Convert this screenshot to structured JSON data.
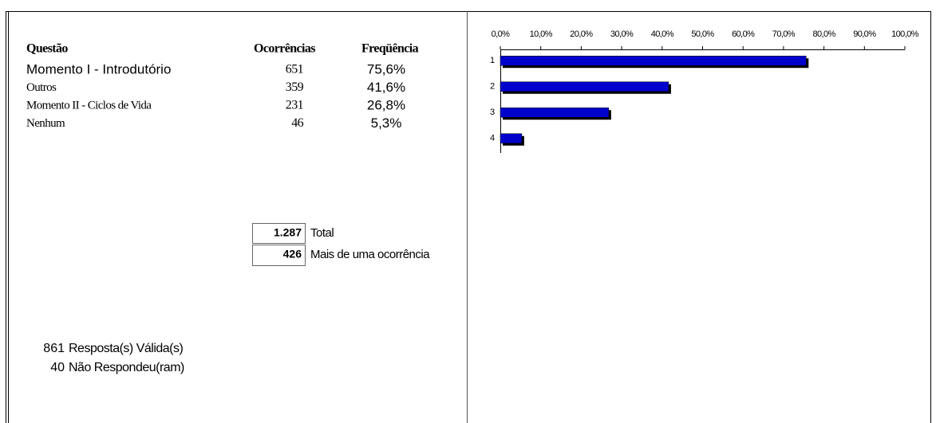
{
  "table": {
    "headers": [
      "Questão",
      "Ocorrências",
      "Freqüência"
    ],
    "rows": [
      [
        "Momento I - Introdutório",
        651,
        "75,6%"
      ],
      [
        "Outros",
        359,
        "41,6%"
      ],
      [
        "Momento II - Ciclos de Vida",
        231,
        "26,8%"
      ],
      [
        "Nenhum",
        46,
        "5,3%"
      ]
    ]
  },
  "totals": [
    {
      "value": "1.287",
      "label": "Total"
    },
    {
      "value": "426",
      "label": "Mais de uma ocorrência"
    }
  ],
  "responses": [
    {
      "count": 861,
      "label": "Resposta(s) Válida(s)"
    },
    {
      "count": 40,
      "label": "Não Respondeu(ram)"
    }
  ],
  "chart_data": {
    "type": "hbar",
    "categories": [
      "1",
      "2",
      "3",
      "4"
    ],
    "values": [
      75.6,
      41.6,
      26.8,
      5.3
    ],
    "color": "#0000cc",
    "shadow": "#000000",
    "xlim": [
      0,
      100
    ],
    "xticks": [
      {
        "value": 0,
        "label": "0,0%"
      },
      {
        "value": 10,
        "label": "10,0%"
      },
      {
        "value": 20,
        "label": "20,0%"
      },
      {
        "value": 30,
        "label": "30,0%"
      },
      {
        "value": 40,
        "label": "40,0%"
      },
      {
        "value": 50,
        "label": "50,0%"
      },
      {
        "value": 60,
        "label": "60,0%"
      },
      {
        "value": 70,
        "label": "70,0%"
      },
      {
        "value": 80,
        "label": "80,0%"
      },
      {
        "value": 90,
        "label": "90,0%"
      },
      {
        "value": 100,
        "label": "100,0%"
      }
    ]
  }
}
